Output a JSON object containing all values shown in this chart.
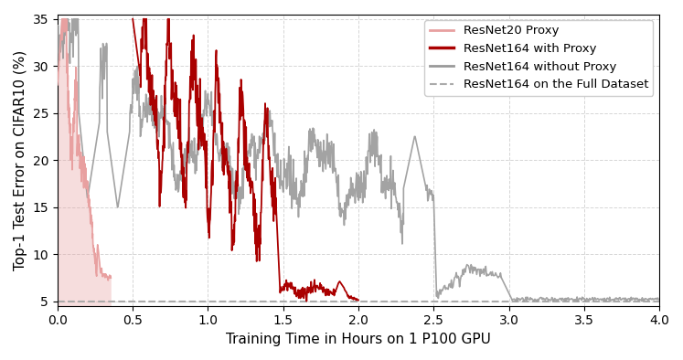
{
  "title": "",
  "xlabel": "Training Time in Hours on 1 P100 GPU",
  "ylabel": "Top-1 Test Error on CIFAR10 (%)",
  "xlim": [
    0,
    4.0
  ],
  "ylim": [
    4.5,
    35.5
  ],
  "yticks": [
    5,
    10,
    15,
    20,
    25,
    30,
    35
  ],
  "xticks": [
    0.0,
    0.5,
    1.0,
    1.5,
    2.0,
    2.5,
    3.0,
    3.5,
    4.0
  ],
  "dashed_line_y": 5.0,
  "dashed_line_color": "#aaaaaa",
  "legend_labels": [
    "ResNet20 Proxy",
    "ResNet164 with Proxy",
    "ResNet164 without Proxy",
    "ResNet164 on the Full Dataset"
  ],
  "proxy_color": "#e8a0a0",
  "with_proxy_color": "#aa0000",
  "without_proxy_color": "#999999",
  "full_dataset_color": "#aaaaaa",
  "grid_color": "#cccccc",
  "background_color": "#ffffff",
  "figsize": [
    7.47,
    3.94
  ],
  "dpi": 100
}
